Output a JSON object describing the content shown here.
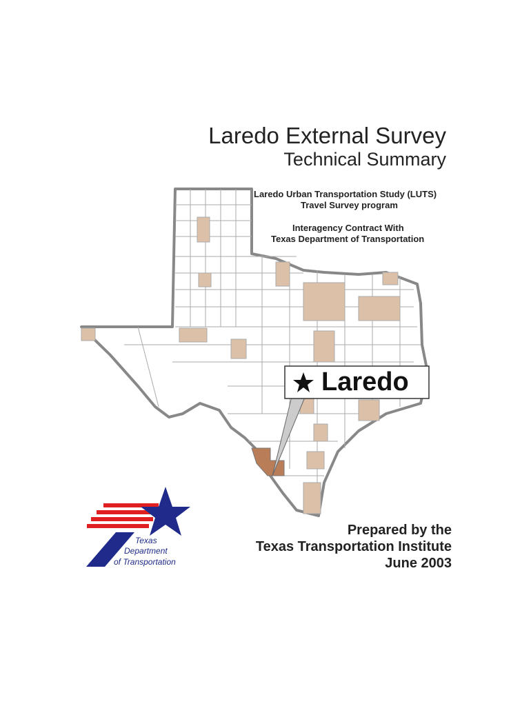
{
  "title": "Laredo External Survey",
  "subtitle": "Technical Summary",
  "study": [
    "Laredo Urban Transportation Study (LUTS)",
    "Travel Survey program"
  ],
  "contract": [
    "Interagency Contract With",
    "Texas Department of Transportation"
  ],
  "callout": "Laredo",
  "logo": [
    "Texas",
    "Department",
    "of Transportation"
  ],
  "prepared": [
    "Prepared by the",
    "Texas Transportation Institute",
    "June 2003"
  ]
}
